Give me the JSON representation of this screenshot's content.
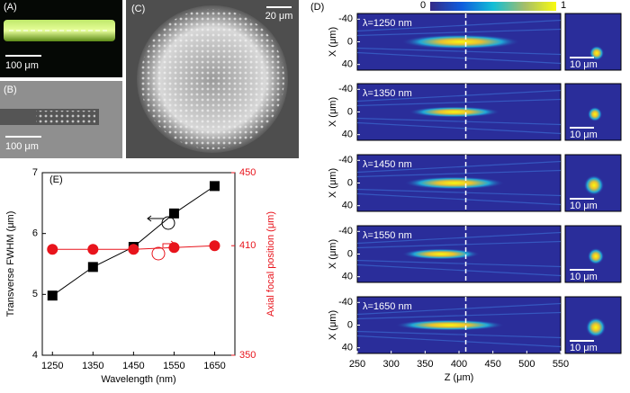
{
  "panels": [
    {
      "label": "(A)",
      "scale_bar": "100 μm"
    },
    {
      "label": "(B)",
      "scale_bar": "100 μm"
    },
    {
      "label": "(C)",
      "scale_bar": "20 μm"
    }
  ],
  "chart_data": [
    {
      "type": "line",
      "label": "(E)",
      "xlabel": "Wavelength (nm)",
      "ylabel": "Transverse FWHM (μm)",
      "y2label": "Axial focal position (μm)",
      "x": [
        1250,
        1350,
        1450,
        1550,
        1650
      ],
      "xlim": [
        1225,
        1700
      ],
      "xticks": [
        1250,
        1350,
        1450,
        1550,
        1650
      ],
      "ylim": [
        4,
        7
      ],
      "yticks": [
        4,
        5,
        6,
        7
      ],
      "y2lim": [
        350,
        450
      ],
      "y2ticks": [
        350,
        410,
        450
      ],
      "series": [
        {
          "color": "#000000",
          "marker": "square",
          "values": [
            4.98,
            5.45,
            5.78,
            6.33,
            6.78
          ]
        },
        {
          "color": "#e8141c",
          "marker": "circle",
          "axis": "y2",
          "values": [
            408,
            408,
            408,
            409,
            410
          ]
        }
      ]
    },
    {
      "type": "heatmap",
      "label": "(D)",
      "xlabel": "Z (μm)",
      "ylabel": "X (μm)",
      "rows": [
        "λ=1250 nm",
        "λ=1350 nm",
        "λ=1450 nm",
        "λ=1550 nm",
        "λ=1650 nm"
      ],
      "inset_scale_bar": "10 μm",
      "xlim": [
        250,
        550
      ],
      "xticks": [
        250,
        300,
        350,
        400,
        450,
        500,
        550
      ],
      "ylim": [
        -50,
        50
      ],
      "yticks": [
        -40,
        0,
        40
      ],
      "colorbar_ticks": [
        0,
        1
      ],
      "reference_z": 410
    }
  ]
}
